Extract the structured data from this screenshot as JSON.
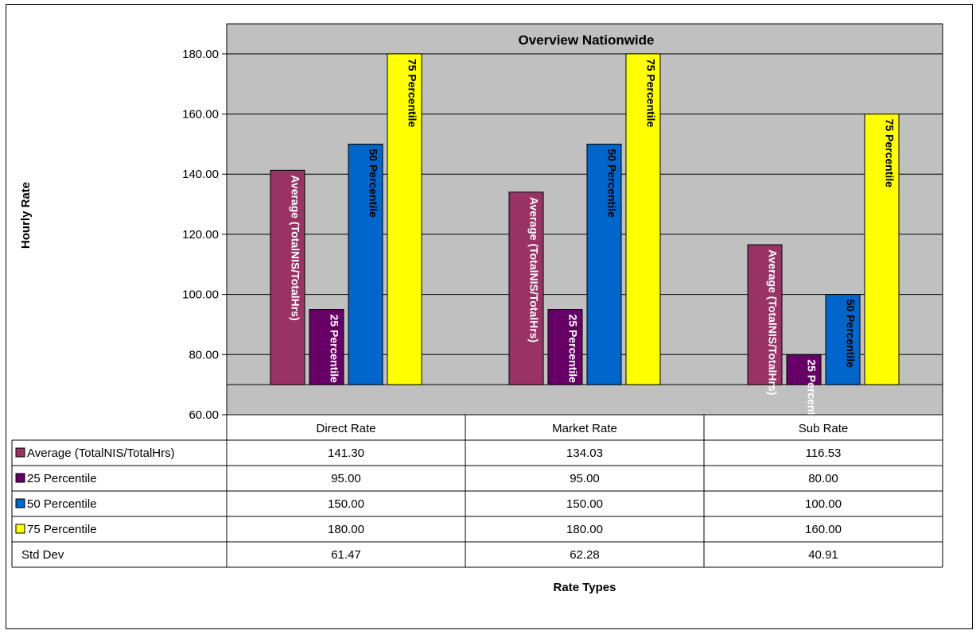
{
  "chart_data": {
    "type": "bar",
    "title": "Overview Nationwide",
    "xlabel": "Rate Types",
    "ylabel": "Hourly Rate",
    "ylim": [
      60,
      190
    ],
    "y_ticks": [
      "60.00",
      "80.00",
      "100.00",
      "120.00",
      "140.00",
      "160.00",
      "180.00"
    ],
    "grid": true,
    "categories": [
      "Direct Rate",
      "Market Rate",
      "Sub Rate"
    ],
    "series": [
      {
        "name": "Average (TotalNIS/TotalHrs)",
        "values": [
          141.3,
          134.03,
          116.53
        ],
        "labels": [
          "141.30",
          "134.03",
          "116.53"
        ],
        "color": "#993366",
        "label_color": "#ffffff"
      },
      {
        "name": "25 Percentile",
        "values": [
          95.0,
          95.0,
          80.0
        ],
        "labels": [
          "95.00",
          "95.00",
          "80.00"
        ],
        "color": "#660066",
        "label_color": "#ffffff"
      },
      {
        "name": "50 Percentile",
        "values": [
          150.0,
          150.0,
          100.0
        ],
        "labels": [
          "150.00",
          "150.00",
          "100.00"
        ],
        "color": "#0066cc",
        "label_color": "#000000"
      },
      {
        "name": "75 Percentile",
        "values": [
          180.0,
          180.0,
          160.0
        ],
        "labels": [
          "180.00",
          "180.00",
          "160.00"
        ],
        "color": "#ffff00",
        "label_color": "#000000"
      }
    ],
    "extra_rows": [
      {
        "name": "Std Dev",
        "labels": [
          "61.47",
          "62.28",
          "40.91"
        ]
      }
    ],
    "plot_background": "#c0c0c0"
  }
}
